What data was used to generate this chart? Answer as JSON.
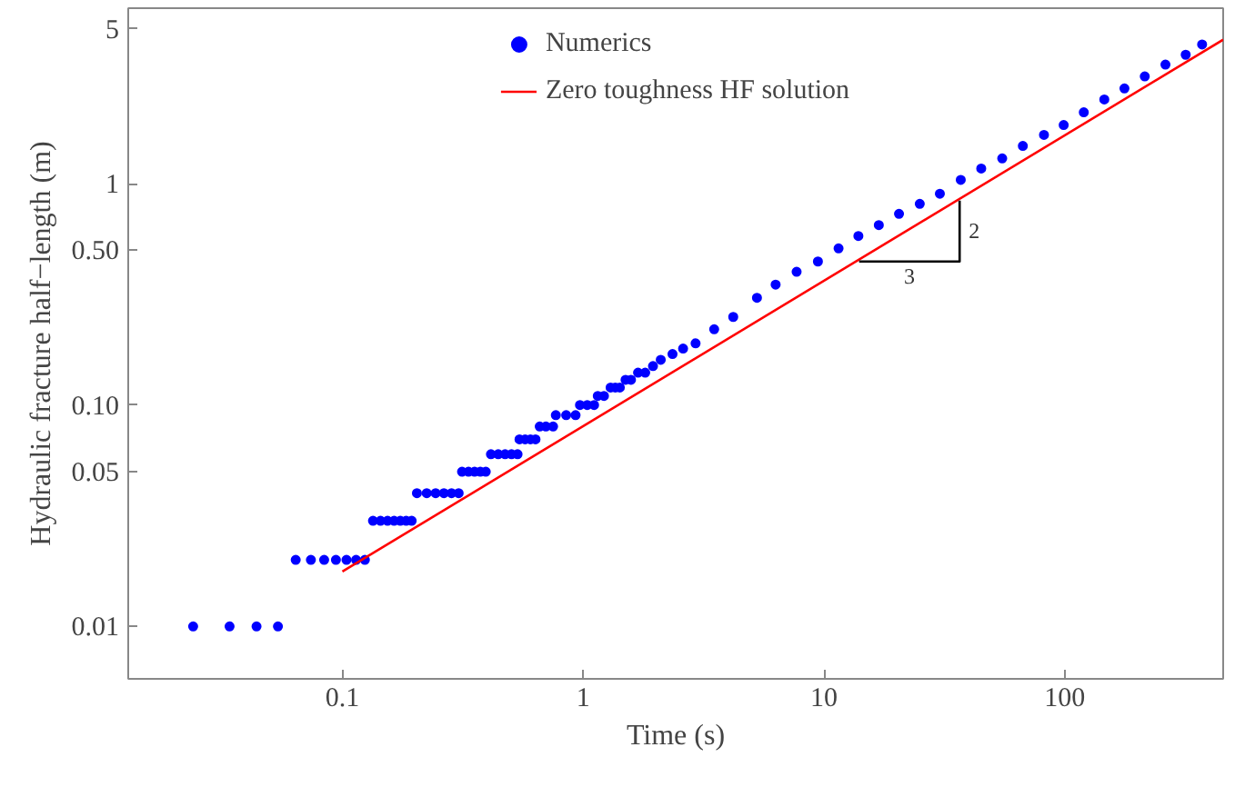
{
  "chart_data": {
    "type": "scatter",
    "xlabel": "Time (s)",
    "ylabel": "Hydraulic fracture half−length (m)",
    "log": "xy",
    "grid": false,
    "legend": "top",
    "xlim": [
      0.0129,
      455
    ],
    "ylim": [
      0.0058,
      6.2
    ],
    "xticks": [
      0.1,
      1,
      10,
      100
    ],
    "yticks": [
      0.01,
      0.05,
      {
        "value": 0.1,
        "label": "0.10"
      },
      {
        "value": 0.5,
        "label": "0.50"
      },
      1,
      5
    ],
    "series": [
      {
        "name": "Numerics",
        "marker": "circle",
        "color": "#0000ff",
        "x": [
          0.024,
          0.034,
          0.044,
          0.054,
          0.064,
          0.074,
          0.084,
          0.094,
          0.104,
          0.114,
          0.124,
          0.134,
          0.144,
          0.154,
          0.164,
          0.174,
          0.184,
          0.194,
          0.204,
          0.224,
          0.244,
          0.264,
          0.284,
          0.304,
          0.314,
          0.334,
          0.354,
          0.374,
          0.394,
          0.414,
          0.444,
          0.474,
          0.504,
          0.534,
          0.544,
          0.574,
          0.604,
          0.634,
          0.66,
          0.7,
          0.75,
          0.77,
          0.85,
          0.93,
          0.97,
          1.04,
          1.11,
          1.15,
          1.22,
          1.3,
          1.36,
          1.42,
          1.5,
          1.58,
          1.69,
          1.81,
          1.95,
          2.1,
          2.35,
          2.6,
          2.93,
          3.5,
          4.2,
          5.27,
          6.3,
          7.7,
          9.44,
          11.5,
          13.9,
          16.9,
          20.5,
          25,
          30.3,
          37,
          45,
          55,
          67,
          82,
          99,
          120,
          146,
          177,
          215,
          262,
          318,
          372
        ],
        "values": [
          0.01,
          0.01,
          0.01,
          0.01,
          0.02,
          0.02,
          0.02,
          0.02,
          0.02,
          0.02,
          0.02,
          0.03,
          0.03,
          0.03,
          0.03,
          0.03,
          0.03,
          0.03,
          0.04,
          0.04,
          0.04,
          0.04,
          0.04,
          0.04,
          0.05,
          0.05,
          0.05,
          0.05,
          0.05,
          0.06,
          0.06,
          0.06,
          0.06,
          0.06,
          0.07,
          0.07,
          0.07,
          0.07,
          0.08,
          0.08,
          0.08,
          0.09,
          0.09,
          0.09,
          0.1,
          0.1,
          0.1,
          0.11,
          0.11,
          0.12,
          0.12,
          0.12,
          0.13,
          0.13,
          0.14,
          0.14,
          0.15,
          0.16,
          0.17,
          0.18,
          0.19,
          0.22,
          0.25,
          0.305,
          0.35,
          0.4,
          0.445,
          0.51,
          0.58,
          0.65,
          0.73,
          0.81,
          0.9,
          1.04,
          1.17,
          1.3,
          1.48,
          1.66,
          1.84,
          2.1,
          2.4,
          2.69,
          3.05,
          3.45,
          3.82,
          4.25
        ]
      },
      {
        "name": "Zero toughness HF solution",
        "type": "line",
        "marker": "none",
        "color": "#ff0000",
        "x": [
          0.1,
          455
        ],
        "values": [
          0.0177,
          4.47
        ]
      },
      {
        "type": "line",
        "marker": "none",
        "color": "#000000",
        "x": [
          14,
          36.6,
          36.6
        ],
        "values": [
          0.445,
          0.445,
          0.838
        ]
      }
    ],
    "annotations": [
      "3",
      "2"
    ]
  }
}
